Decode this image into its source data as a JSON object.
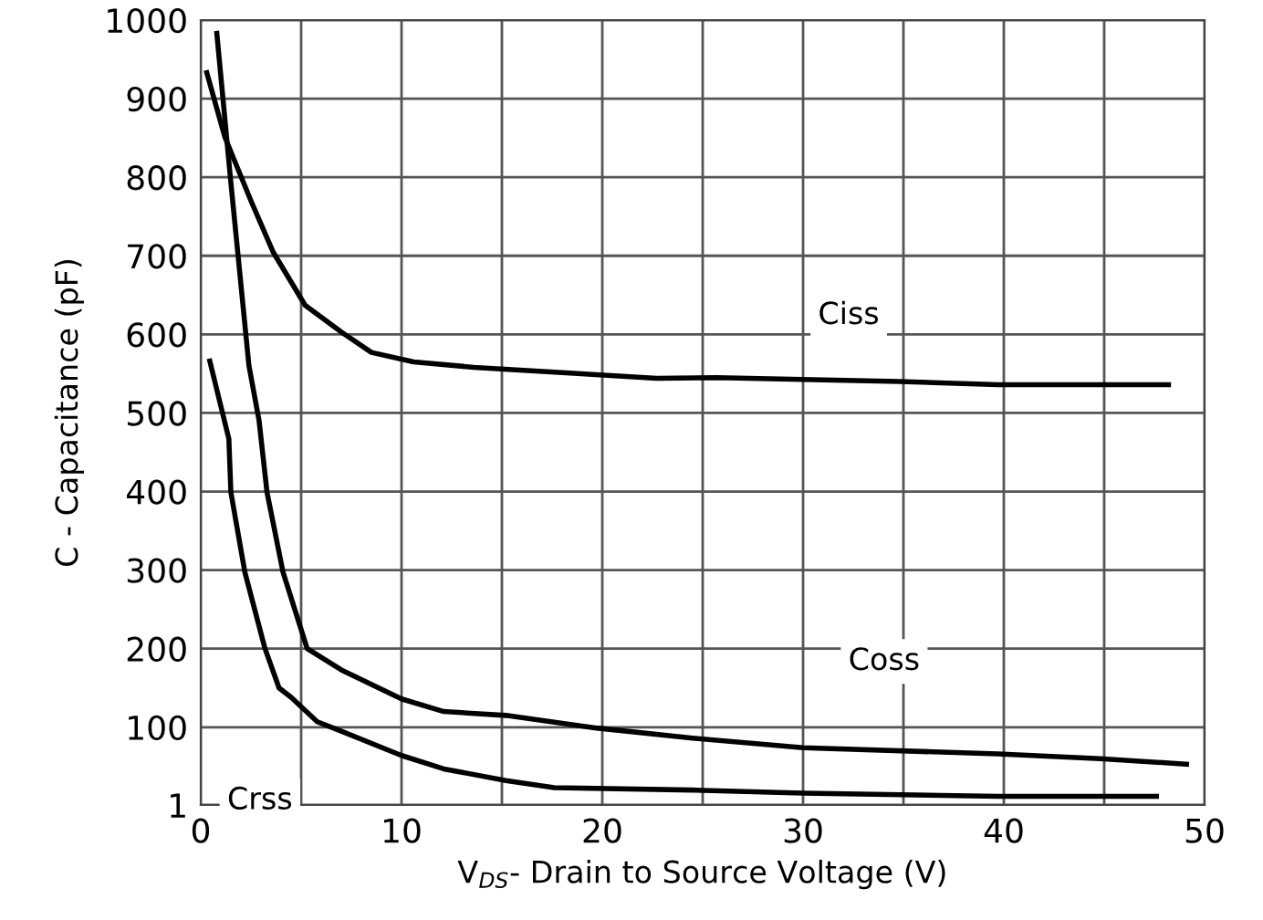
{
  "chart_data": {
    "type": "line",
    "xlabel": "V$_{DS}$- Drain to Source Voltage (V)",
    "ylabel": "C - Capacitance (pF)",
    "xlim": [
      0,
      50
    ],
    "ylim": [
      1,
      1000
    ],
    "xticks": [
      0,
      {
        "value": 5,
        "label": null
      },
      10,
      {
        "value": 15,
        "label": null
      },
      20,
      {
        "value": 25,
        "label": null
      },
      30,
      {
        "value": 35,
        "label": null
      },
      40,
      {
        "value": 45,
        "label": null
      },
      50
    ],
    "yticks": [
      1,
      100,
      200,
      300,
      400,
      500,
      600,
      700,
      800,
      900,
      1000
    ],
    "grid": true,
    "marker": "none",
    "line_style": "solid",
    "series": [
      {
        "name": "Ciss",
        "color": "#000000",
        "x": [
          0.3,
          1.2,
          2.5,
          3.6,
          5.2,
          7,
          8.5,
          10.6,
          13.6,
          18.2,
          22.7,
          25.7,
          34.8,
          39.7,
          48.2
        ],
        "values": [
          933,
          851,
          770,
          705,
          637,
          603,
          577,
          565,
          558,
          551,
          544,
          545,
          540,
          536,
          536
        ]
      },
      {
        "name": "Coss",
        "color": "#000000",
        "x": [
          0.8,
          1.5,
          2.4,
          2.9,
          3.3,
          4.1,
          5.3,
          7,
          10,
          12.1,
          15.2,
          19.7,
          24.5,
          30,
          39.7,
          44.8,
          49.1
        ],
        "values": [
          983,
          793,
          560,
          491,
          399,
          297,
          200,
          173,
          136,
          120,
          115,
          99,
          86,
          74,
          66,
          60,
          53
        ]
      },
      {
        "name": "Crss",
        "color": "#000000",
        "x": [
          0.45,
          1.4,
          1.5,
          2.2,
          3.2,
          3.9,
          4.5,
          5.8,
          7,
          10,
          12.1,
          15.2,
          17.6,
          24.5,
          30,
          39.7,
          47.6
        ],
        "values": [
          566,
          467,
          399,
          297,
          200,
          150,
          138,
          107,
          95,
          64,
          47,
          32,
          23,
          20,
          16,
          12,
          12
        ]
      }
    ]
  }
}
